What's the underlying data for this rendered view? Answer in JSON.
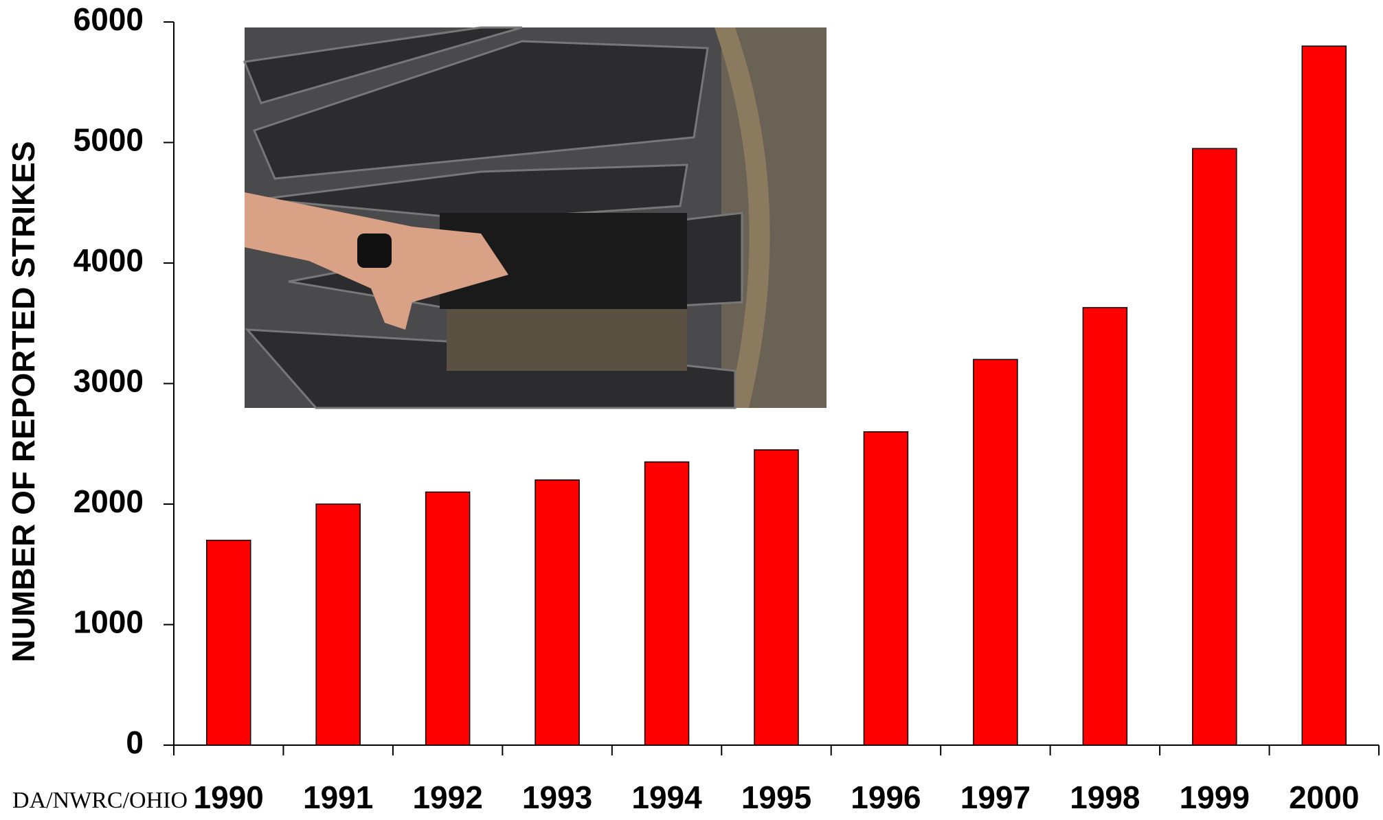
{
  "chart_data": {
    "type": "bar",
    "y_label": "NUMBER OF REPORTED STRIKES",
    "credit": "DA/NWRC/OHIO",
    "categories": [
      "1990",
      "1991",
      "1992",
      "1993",
      "1994",
      "1995",
      "1996",
      "1997",
      "1998",
      "1999",
      "2000"
    ],
    "values": [
      1700,
      2000,
      2100,
      2200,
      2350,
      2450,
      2600,
      3200,
      3630,
      4950,
      5800
    ],
    "color": "#ff0000",
    "ylim": [
      0,
      6000
    ],
    "yticks": [
      0,
      1000,
      2000,
      3000,
      4000,
      5000,
      6000
    ],
    "grid": false
  }
}
